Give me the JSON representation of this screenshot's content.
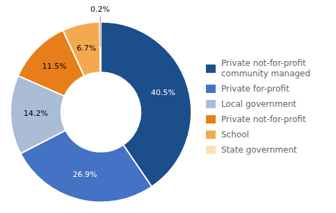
{
  "chart_data": {
    "type": "doughnut",
    "categories": [
      "Private not-for-profit\ncommunity managed",
      "Private for-profit",
      "Local government",
      "Private not-for-profit",
      "School",
      "State government"
    ],
    "values": [
      40.5,
      26.9,
      14.2,
      11.5,
      6.7,
      0.2
    ],
    "value_labels": [
      "40.5%",
      "26.9%",
      "14.2%",
      "11.5%",
      "6.7%",
      "0.2%"
    ],
    "colors": [
      "#1C4E8C",
      "#4472C4",
      "#AABCD6",
      "#E87E1A",
      "#F5A94E",
      "#FAE4B0"
    ],
    "data_labels": true,
    "legend": "right"
  }
}
